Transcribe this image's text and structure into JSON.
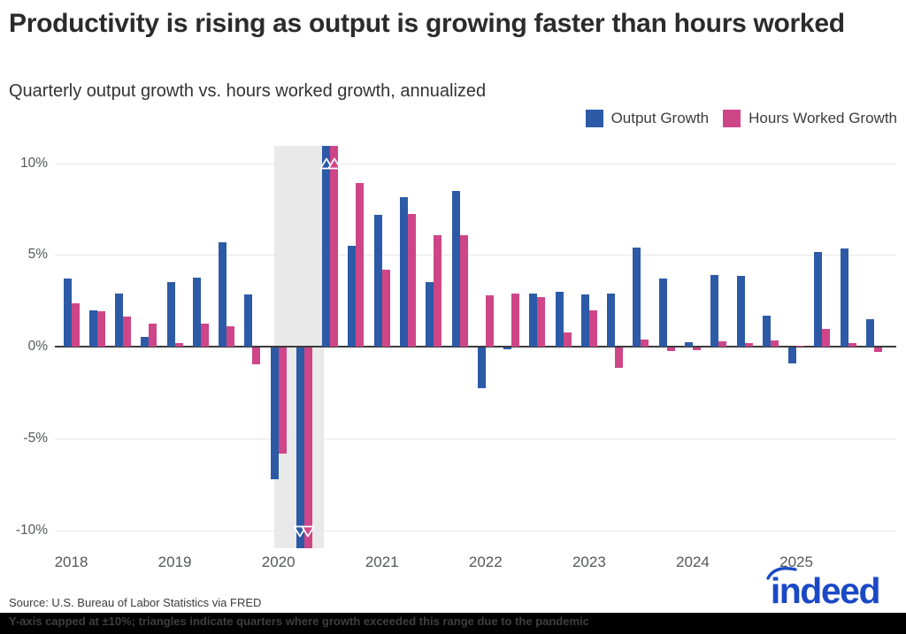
{
  "header": {
    "title": "Productivity is rising as output is growing faster than hours worked",
    "subtitle": "Quarterly output growth vs. hours worked growth, annualized"
  },
  "footer": {
    "source": "Source: U.S. Bureau of Labor Statistics via FRED",
    "note": "Y-axis capped at ±10%; triangles indicate quarters where growth exceeded this range due to the pandemic",
    "logo_text": "indeed",
    "logo_color": "#1b49c6"
  },
  "chart_data": {
    "type": "bar",
    "title": "Productivity is rising as output is growing faster than hours worked",
    "subtitle": "Quarterly output growth vs. hours worked growth, annualized",
    "categories": [
      "2018 Q1",
      "2018 Q2",
      "2018 Q3",
      "2018 Q4",
      "2019 Q1",
      "2019 Q2",
      "2019 Q3",
      "2019 Q4",
      "2020 Q1",
      "2020 Q2",
      "2020 Q3",
      "2020 Q4",
      "2021 Q1",
      "2021 Q2",
      "2021 Q3",
      "2021 Q4",
      "2022 Q1",
      "2022 Q2",
      "2022 Q3",
      "2022 Q4",
      "2023 Q1",
      "2023 Q2",
      "2023 Q3",
      "2023 Q4",
      "2024 Q1",
      "2024 Q2",
      "2024 Q3",
      "2024 Q4",
      "2025 Q1",
      "2025 Q2",
      "2025 Q3",
      "2025 Q4"
    ],
    "series": [
      {
        "name": "Output Growth",
        "color": "#2c5aa7",
        "values": [
          3.7,
          2.0,
          2.9,
          0.55,
          3.5,
          3.75,
          5.7,
          2.85,
          -7.2,
          -10,
          10,
          5.5,
          7.2,
          8.15,
          3.5,
          8.5,
          -2.2,
          -0.1,
          2.9,
          3.0,
          2.85,
          2.9,
          5.4,
          3.7,
          0.25,
          3.9,
          3.85,
          1.7,
          -0.85,
          5.15,
          5.35,
          1.5
        ]
      },
      {
        "name": "Hours Worked Growth",
        "color": "#ce4687",
        "values": [
          2.35,
          1.95,
          1.65,
          1.25,
          0.2,
          1.25,
          1.1,
          -0.9,
          -5.8,
          -10,
          10,
          8.9,
          4.2,
          7.25,
          6.05,
          6.05,
          2.8,
          2.9,
          2.7,
          0.75,
          2.0,
          -1.1,
          0.4,
          -0.2,
          -0.15,
          0.3,
          0.2,
          0.35,
          0.05,
          0.95,
          0.2,
          -0.25
        ]
      }
    ],
    "y_axis": {
      "ticks": [
        {
          "v": 10,
          "label": "10%"
        },
        {
          "v": 5,
          "label": "5%"
        },
        {
          "v": 0,
          "label": "0%"
        },
        {
          "v": -5,
          "label": "-5%"
        },
        {
          "v": -10,
          "label": "-10%"
        }
      ],
      "range": [
        -10,
        10
      ],
      "capped_at": 10
    },
    "x_axis": {
      "tick_labels": [
        "2018",
        "2019",
        "2020",
        "2021",
        "2022",
        "2023",
        "2024",
        "2025"
      ]
    },
    "capped": {
      "indices": [
        9,
        10
      ],
      "description": "2020 Q2 exceeded -10%, 2020 Q3 exceeded +10%; bars capped with white triangle markers at ±10%"
    },
    "recession_band": {
      "from": "2020 Q1",
      "to": "2020 Q2",
      "color": "#e9e9e9"
    },
    "legend_position": "top-right",
    "grid": true
  }
}
